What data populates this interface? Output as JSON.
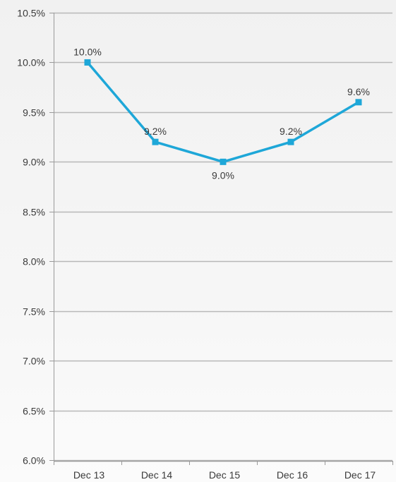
{
  "chart_data": {
    "type": "line",
    "categories": [
      "Dec 13",
      "Dec 14",
      "Dec 15",
      "Dec 16",
      "Dec 17"
    ],
    "series": [
      {
        "values": [
          10.0,
          9.2,
          9.0,
          9.2,
          9.6
        ],
        "data_labels": [
          "10.0%",
          "9.2%",
          "9.0%",
          "9.2%",
          "9.6%"
        ],
        "color": "#1ea7d8"
      }
    ],
    "ylim": [
      6.0,
      10.5
    ],
    "y_ticks": [
      6.0,
      6.5,
      7.0,
      7.5,
      8.0,
      8.5,
      9.0,
      9.5,
      10.0,
      10.5
    ],
    "y_tick_labels": [
      "6.0%",
      "6.5%",
      "7.0%",
      "7.5%",
      "8.0%",
      "8.5%",
      "9.0%",
      "9.5%",
      "10.0%",
      "10.5%"
    ],
    "grid": true,
    "colors": {
      "grid": "#b8b8b8",
      "axis": "#9a9a9a",
      "text": "#3a3a3a"
    }
  }
}
